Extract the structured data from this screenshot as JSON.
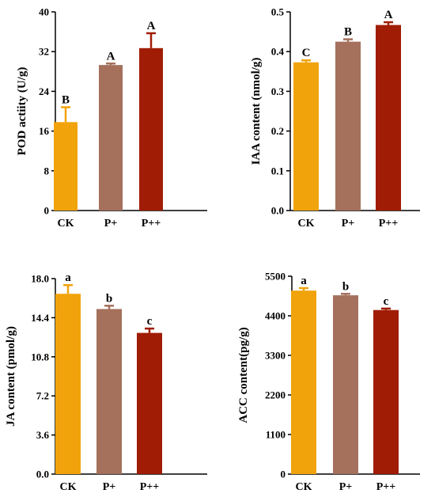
{
  "colors": {
    "CK": "#F0A30A",
    "P+": "#A5705C",
    "P++": "#A01C05",
    "axis": "#000000"
  },
  "chart_data": [
    {
      "type": "bar",
      "ylabel": "POD actiity (U/g)",
      "categories": [
        "CK",
        "P+",
        "P++"
      ],
      "values": [
        17.8,
        29.3,
        32.7
      ],
      "errors": [
        3.0,
        0.3,
        3.0
      ],
      "significance": [
        "B",
        "A",
        "A"
      ],
      "ylim": [
        0,
        40
      ],
      "yticks": [
        "0",
        "8",
        "16",
        "24",
        "32",
        "40"
      ]
    },
    {
      "type": "bar",
      "ylabel": "IAA content (nmol/g)",
      "categories": [
        "CK",
        "P+",
        "P++"
      ],
      "values": [
        0.373,
        0.425,
        0.467
      ],
      "errors": [
        0.005,
        0.006,
        0.007
      ],
      "significance": [
        "C",
        "B",
        "A"
      ],
      "ylim": [
        0,
        0.5
      ],
      "yticks": [
        "0.0",
        "0.1",
        "0.2",
        "0.3",
        "0.4",
        "0.5"
      ]
    },
    {
      "type": "bar",
      "ylabel": "JA content (pmol/g)",
      "categories": [
        "CK",
        "P+",
        "P++"
      ],
      "values": [
        16.6,
        15.2,
        13.0
      ],
      "errors": [
        0.8,
        0.3,
        0.4
      ],
      "significance": [
        "a",
        "b",
        "c"
      ],
      "ylim": [
        0,
        18
      ],
      "yticks": [
        "0.0",
        "3.6",
        "7.2",
        "10.8",
        "14.4",
        "18.0"
      ]
    },
    {
      "type": "bar",
      "ylabel": "ACC content(pg/g)",
      "categories": [
        "CK",
        "P+",
        "P++"
      ],
      "values": [
        5100,
        4970,
        4560
      ],
      "errors": [
        70,
        40,
        40
      ],
      "significance": [
        "a",
        "b",
        "c"
      ],
      "ylim": [
        0,
        5500
      ],
      "yticks": [
        "0",
        "1100",
        "2200",
        "3300",
        "4400",
        "5500"
      ]
    }
  ]
}
